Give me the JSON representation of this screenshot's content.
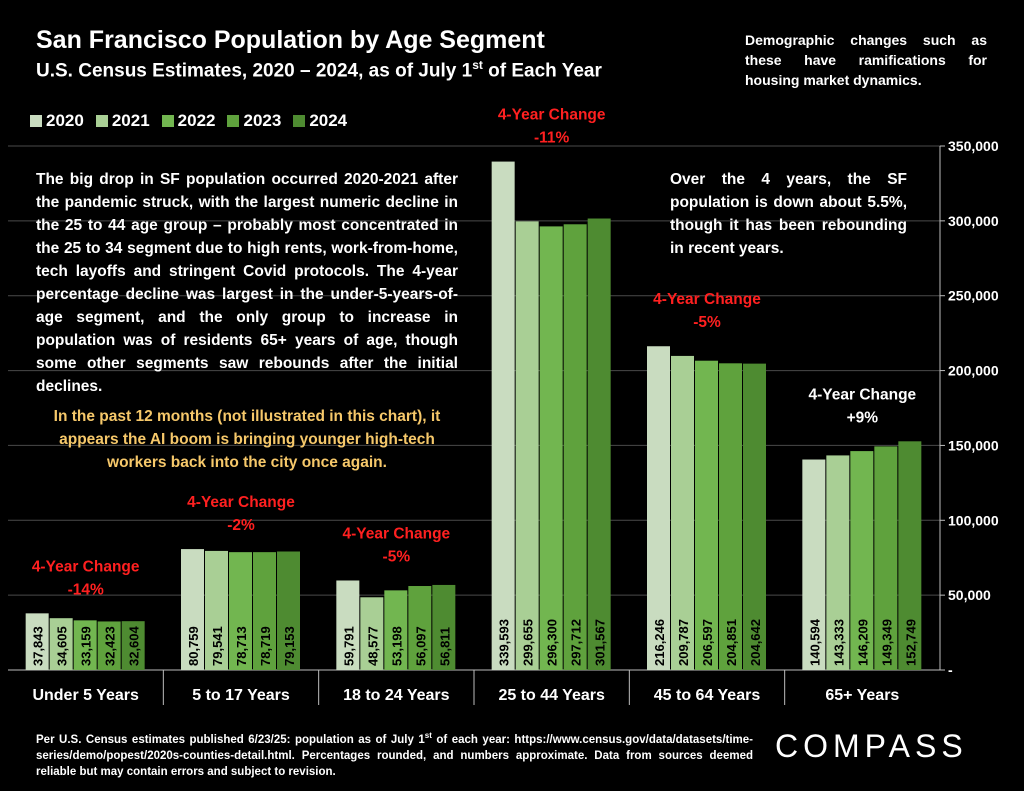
{
  "header": {
    "title": "San Francisco Population by Age Segment",
    "subtitle_main": "U.S. Census Estimates, 2020 – 2024, as of July 1",
    "subtitle_sup": "st",
    "subtitle_tail": " of Each Year"
  },
  "note_right": "Demographic changes such as these have ramifications for housing market dynamics.",
  "legend": [
    {
      "label": "2020",
      "color": "#c9dcc0"
    },
    {
      "label": "2021",
      "color": "#a9cf95"
    },
    {
      "label": "2022",
      "color": "#72b650"
    },
    {
      "label": "2023",
      "color": "#5fa23d"
    },
    {
      "label": "2024",
      "color": "#4e8b31"
    }
  ],
  "paragraph_left": "The big drop in SF population occurred 2020-2021 after the pandemic struck, with the largest numeric decline in the 25 to 44 age group – probably most concentrated in the 25 to 34 segment due to high rents, work-from-home, tech layoffs and stringent Covid protocols. The 4-year percentage decline was largest in the under-5-years-of-age segment, and the only group to increase in population was of residents 65+ years of age, though some other segments saw rebounds after the initial declines.",
  "paragraph_ai": "In the past 12 months (not illustrated in this chart), it appears the AI boom is bringing younger high-tech workers back into the city once again.",
  "paragraph_right": "Over the 4 years, the SF population is down about 5.5%, though it has been rebounding in recent years.",
  "footer": {
    "part1": "Per U.S. Census estimates published 6/23/25: population as of July 1",
    "sup": "st",
    "part2": " of each year: https://www.census.gov/data/datasets/time-series/demo/popest/2020s-counties-detail.html. Percentages rounded, and numbers approximate. Data from sources deemed reliable but may contain errors and subject to revision."
  },
  "logo": "COMPASS",
  "chart_data": {
    "type": "bar",
    "categories": [
      "Under 5 Years",
      "5 to 17 Years",
      "18 to 24 Years",
      "25 to 44 Years",
      "45 to 64 Years",
      "65+ Years"
    ],
    "series": [
      {
        "name": "2020",
        "values": [
          37843,
          80759,
          59791,
          339593,
          216246,
          140594
        ]
      },
      {
        "name": "2021",
        "values": [
          34605,
          79541,
          48577,
          299655,
          209787,
          143333
        ]
      },
      {
        "name": "2022",
        "values": [
          33159,
          78713,
          53198,
          296300,
          206597,
          146209
        ]
      },
      {
        "name": "2023",
        "values": [
          32423,
          78719,
          56097,
          297712,
          204851,
          149349
        ]
      },
      {
        "name": "2024",
        "values": [
          32604,
          79153,
          56811,
          301567,
          204642,
          152749
        ]
      }
    ],
    "value_labels": [
      [
        "37,843",
        "34,605",
        "33,159",
        "32,423",
        "32,604"
      ],
      [
        "80,759",
        "79,541",
        "78,713",
        "78,719",
        "79,153"
      ],
      [
        "59,791",
        "48,577",
        "53,198",
        "56,097",
        "56,811"
      ],
      [
        "339,593",
        "299,655",
        "296,300",
        "297,712",
        "301,567"
      ],
      [
        "216,246",
        "209,787",
        "206,597",
        "204,851",
        "204,642"
      ],
      [
        "140,594",
        "143,333",
        "146,209",
        "149,349",
        "152,749"
      ]
    ],
    "annotations": [
      {
        "title": "4-Year Change",
        "value": "-14%",
        "color": "#ff2020"
      },
      {
        "title": "4-Year Change",
        "value": "-2%",
        "color": "#ff2020"
      },
      {
        "title": "4-Year Change",
        "value": "-5%",
        "color": "#ff2020"
      },
      {
        "title": "4-Year Change",
        "value": "-11%",
        "color": "#ff2020"
      },
      {
        "title": "4-Year Change",
        "value": "-5%",
        "color": "#ff2020"
      },
      {
        "title": "4-Year Change",
        "value": "+9%",
        "color": "#ffffff"
      }
    ],
    "yaxis": {
      "ticks": [
        0,
        50000,
        100000,
        150000,
        200000,
        250000,
        300000,
        350000
      ],
      "tick_labels": [
        "-",
        "50,000",
        "100,000",
        "150,000",
        "200,000",
        "250,000",
        "300,000",
        "350,000"
      ],
      "position": "right"
    },
    "ylim": [
      0,
      350000
    ],
    "grid": true,
    "legend_position": "top-left"
  }
}
